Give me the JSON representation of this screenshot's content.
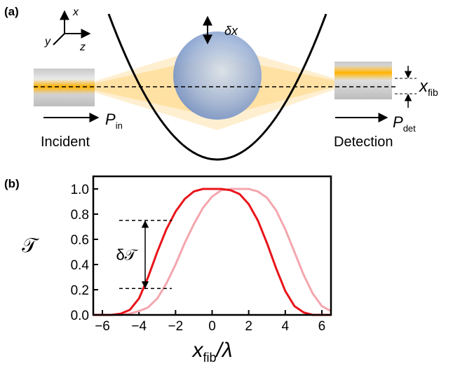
{
  "panel_a": {
    "label": "(a)",
    "axes": {
      "x": "x",
      "y": "y",
      "z": "z"
    },
    "shift": "δx",
    "offset": {
      "symbol": "x",
      "subscript": "fib"
    },
    "input": {
      "symbol": "P",
      "subscript": "in",
      "caption": "Incident"
    },
    "output": {
      "symbol": "P",
      "subscript": "det",
      "caption": "Detection"
    }
  },
  "panel_b": {
    "label": "(b)"
  },
  "chart_data": {
    "type": "line",
    "ylabel": "𝒯",
    "xlabel": {
      "symbol": "x",
      "subscript": "fib",
      "suffix": "/λ"
    },
    "x": [
      -6.5,
      -6,
      -5.5,
      -5,
      -4.5,
      -4,
      -3.5,
      -3,
      -2.5,
      -2,
      -1.5,
      -1,
      -0.5,
      0,
      0.5,
      1,
      1.5,
      2,
      2.5,
      3,
      3.5,
      4,
      4.5,
      5,
      5.5,
      6,
      6.5
    ],
    "series": [
      {
        "color": "#f4a6ad",
        "values": [
          0,
          0,
          0,
          0,
          0.01,
          0.03,
          0.06,
          0.13,
          0.25,
          0.4,
          0.57,
          0.72,
          0.85,
          0.94,
          0.99,
          1.0,
          1.0,
          1.0,
          0.98,
          0.93,
          0.83,
          0.68,
          0.5,
          0.32,
          0.17,
          0.07,
          0.03
        ]
      },
      {
        "color": "#e8141b",
        "values": [
          0,
          0,
          0,
          0.01,
          0.04,
          0.13,
          0.3,
          0.5,
          0.68,
          0.82,
          0.92,
          0.98,
          1.0,
          1.0,
          1.0,
          0.99,
          0.96,
          0.88,
          0.75,
          0.57,
          0.37,
          0.19,
          0.07,
          0.02,
          0,
          0,
          0
        ]
      }
    ],
    "bracket": {
      "label": "δ𝒯",
      "low": 0.21,
      "high": 0.75
    },
    "xlim": [
      -6.5,
      6.5
    ],
    "xticks": [
      {
        "value": -6,
        "label": "−6"
      },
      {
        "value": -4,
        "label": "−4"
      },
      {
        "value": -2,
        "label": "−2"
      },
      0,
      2,
      4,
      6
    ],
    "ylim": [
      0,
      1.1
    ],
    "yticks": [
      {
        "value": 0,
        "label": "0.0"
      },
      0.2,
      0.4,
      0.6,
      0.8,
      {
        "value": 1,
        "label": "1.0"
      }
    ]
  }
}
